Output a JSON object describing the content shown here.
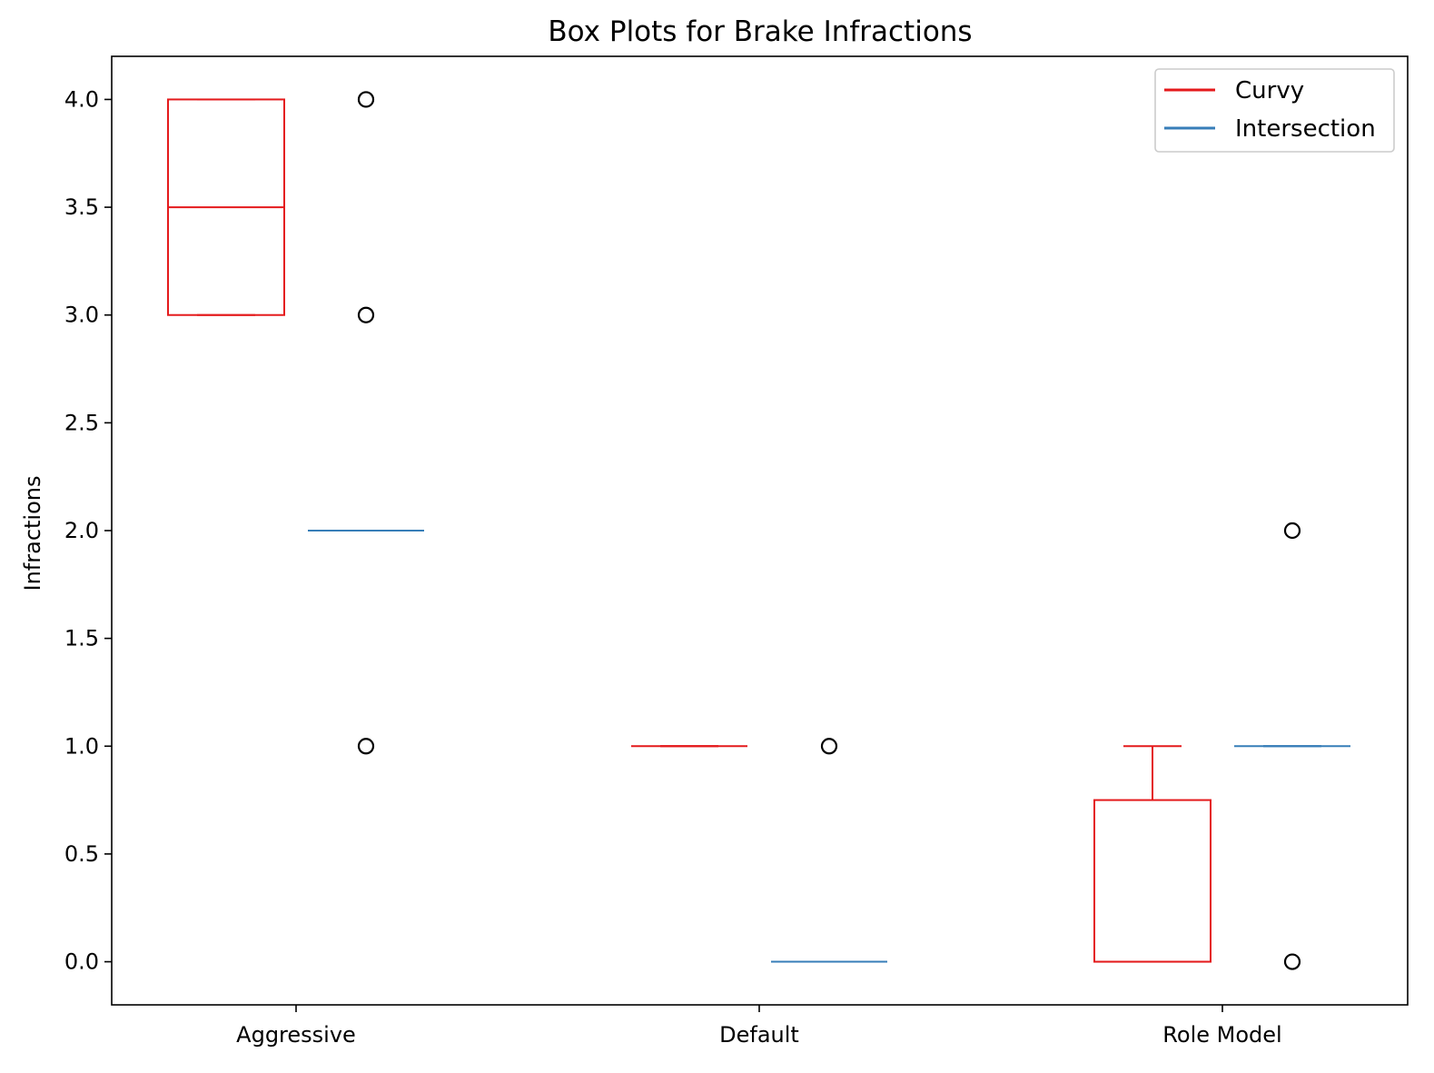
{
  "chart_data": {
    "type": "box",
    "title": "Box Plots for Brake Infractions",
    "xlabel": "",
    "ylabel": "Infractions",
    "categories": [
      "Aggressive",
      "Default",
      "Role Model"
    ],
    "yticks": [
      "0.0",
      "0.5",
      "1.0",
      "1.5",
      "2.0",
      "2.5",
      "3.0",
      "3.5",
      "4.0"
    ],
    "ylim": [
      -0.2,
      4.2
    ],
    "grid": false,
    "legend_position": "top-right",
    "series": [
      {
        "name": "Curvy",
        "color": "#e41a1c",
        "boxes": [
          {
            "category": "Aggressive",
            "whisker_low": 3.0,
            "q1": 3.0,
            "median": 3.5,
            "q3": 4.0,
            "whisker_high": 4.0,
            "outliers": []
          },
          {
            "category": "Default",
            "whisker_low": 1.0,
            "q1": 1.0,
            "median": 1.0,
            "q3": 1.0,
            "whisker_high": 1.0,
            "outliers": []
          },
          {
            "category": "Role Model",
            "whisker_low": 0.0,
            "q1": 0.0,
            "median": 0.0,
            "q3": 0.75,
            "whisker_high": 1.0,
            "outliers": []
          }
        ]
      },
      {
        "name": "Intersection",
        "color": "#377eb8",
        "boxes": [
          {
            "category": "Aggressive",
            "whisker_low": 2.0,
            "q1": 2.0,
            "median": 2.0,
            "q3": 2.0,
            "whisker_high": 2.0,
            "outliers": [
              1.0,
              3.0,
              4.0
            ]
          },
          {
            "category": "Default",
            "whisker_low": 0.0,
            "q1": 0.0,
            "median": 0.0,
            "q3": 0.0,
            "whisker_high": 0.0,
            "outliers": [
              1.0
            ]
          },
          {
            "category": "Role Model",
            "whisker_low": 1.0,
            "q1": 1.0,
            "median": 1.0,
            "q3": 1.0,
            "whisker_high": 1.0,
            "outliers": [
              0.0,
              2.0
            ]
          }
        ]
      }
    ]
  }
}
